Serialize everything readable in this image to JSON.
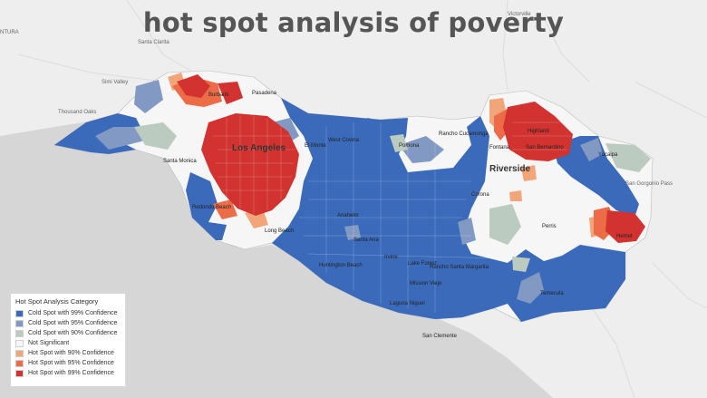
{
  "title": "hot spot analysis of poverty",
  "places": {
    "los_angeles": "Los Angeles",
    "riverside": "Riverside",
    "victorville": "Victorville",
    "santa_clarita": "Santa Clarita",
    "ventura": "NTURA",
    "simi_valley": "Simi Valley",
    "thousand_oaks": "Thousand Oaks",
    "santa_monica": "Santa Monica",
    "redondo_beach": "Redondo Beach",
    "long_beach": "Long Beach",
    "huntington_beach": "Huntington Beach",
    "san_clemente": "San Clemente",
    "perris": "Perris",
    "hemet": "Hemet",
    "temecula": "Temecula",
    "san_gorgonio_pass": "San Gorgonio Pass",
    "yucaipa": "Yucaipa",
    "pomona": "Pomona",
    "rancho_cucamonga": "Rancho Cucamonga",
    "el_monte": "El Monte",
    "west_covina": "West Covina",
    "anaheim": "Anaheim",
    "santa_ana": "Santa Ana",
    "irvine": "Irvine",
    "mission_viejo": "Mission Viejo",
    "lake_forest": "Lake Forest",
    "laguna_niguel": "Laguna Niguel",
    "rancho_santa_margarita": "Rancho Santa Margarita",
    "highland": "Highland",
    "san_bernardino": "San Bernardino",
    "pasadena": "Pasadena",
    "burbank": "Burbank",
    "corona": "Corona",
    "fontana": "Fontana"
  },
  "legend": {
    "title": "Hot Spot Analysis Category",
    "items": [
      {
        "label": "Cold Spot with 99% Confidence",
        "color": "#3b6abb"
      },
      {
        "label": "Cold Spot with 95% Confidence",
        "color": "#8299c4"
      },
      {
        "label": "Cold Spot with 90% Confidence",
        "color": "#bccbbf"
      },
      {
        "label": "Not Significant",
        "color": "#f6f6f6"
      },
      {
        "label": "Hot Spot with 90% Confidence",
        "color": "#f3a57a"
      },
      {
        "label": "Hot Spot with 95% Confidence",
        "color": "#eb6c47"
      },
      {
        "label": "Hot Spot with 99% Confidence",
        "color": "#d33330"
      }
    ]
  },
  "colors": {
    "ocean": "#d6d6d6",
    "land_background": "#eeeeee",
    "cold99": "#3b6abb",
    "cold95": "#8299c4",
    "cold90": "#bccbbf",
    "not_significant": "#f6f6f6",
    "hot90": "#f3a57a",
    "hot95": "#eb6c47",
    "hot99": "#d33330"
  }
}
